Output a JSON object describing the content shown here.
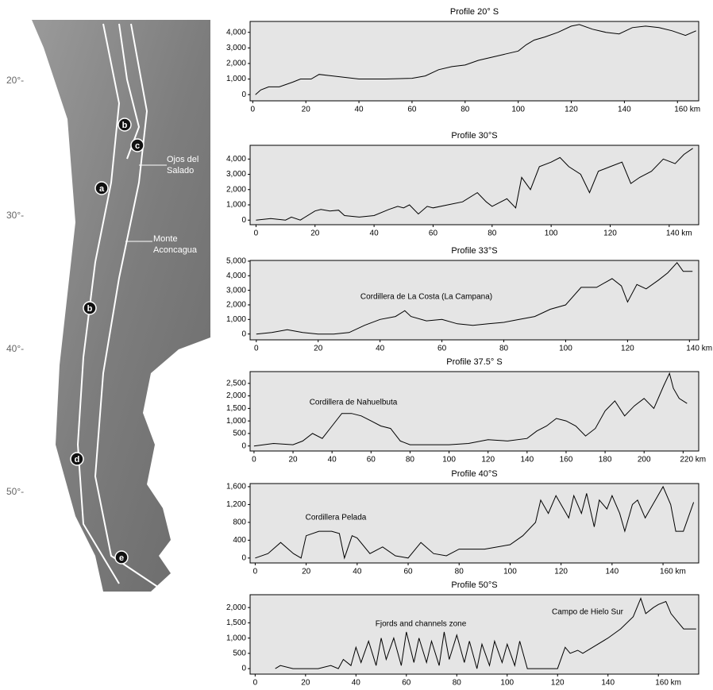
{
  "map": {
    "latitude_labels": [
      "20°-",
      "30°-",
      "40°-",
      "50°-"
    ],
    "markers": [
      "b",
      "c",
      "a",
      "b",
      "d",
      "e"
    ],
    "places": [
      [
        "Ojos del",
        "Salado"
      ],
      [
        "Monte",
        "Aconcagua"
      ]
    ]
  },
  "chart_data": [
    {
      "type": "line",
      "title": "Profile 20° S",
      "x": [
        1,
        3,
        6,
        10,
        15,
        18,
        22,
        25,
        30,
        40,
        50,
        60,
        65,
        70,
        75,
        80,
        85,
        90,
        95,
        100,
        103,
        106,
        110,
        115,
        120,
        123,
        128,
        133,
        138,
        143,
        148,
        153,
        158,
        163,
        167
      ],
      "series": [
        {
          "color": "#000000",
          "values": [
            0,
            300,
            500,
            500,
            800,
            1000,
            1000,
            1300,
            1200,
            1000,
            1000,
            1050,
            1200,
            1600,
            1800,
            1900,
            2200,
            2400,
            2600,
            2800,
            3200,
            3500,
            3700,
            4000,
            4400,
            4500,
            4200,
            4000,
            3900,
            4300,
            4400,
            4300,
            4100,
            3800,
            4100
          ]
        }
      ],
      "xlim": [
        -1,
        168
      ],
      "ylim": [
        -400,
        4700
      ],
      "xticks": [
        0,
        20,
        40,
        60,
        80,
        100,
        120,
        140,
        {
          "value": 160,
          "label": "160 km"
        }
      ],
      "yticks": [
        0,
        {
          "value": 1000,
          "label": "1,000"
        },
        {
          "value": 2000,
          "label": "2,000"
        },
        {
          "value": 3000,
          "label": "3,000"
        },
        {
          "value": 4000,
          "label": "4,000"
        }
      ],
      "annotations": []
    },
    {
      "type": "line",
      "title": "Profile 30°S",
      "x": [
        0,
        5,
        10,
        12,
        15,
        20,
        22,
        25,
        28,
        30,
        35,
        40,
        45,
        48,
        50,
        52,
        55,
        58,
        60,
        65,
        70,
        75,
        78,
        80,
        85,
        88,
        90,
        93,
        96,
        100,
        103,
        106,
        110,
        113,
        116,
        120,
        124,
        127,
        130,
        134,
        138,
        142,
        145,
        148
      ],
      "series": [
        {
          "color": "#000000",
          "values": [
            0,
            100,
            0,
            200,
            0,
            600,
            700,
            600,
            650,
            300,
            200,
            300,
            700,
            900,
            800,
            1000,
            400,
            900,
            800,
            1000,
            1200,
            1800,
            1200,
            900,
            1400,
            800,
            2800,
            2000,
            3500,
            3800,
            4100,
            3500,
            3000,
            1800,
            3200,
            3500,
            3800,
            2400,
            2800,
            3200,
            4000,
            3700,
            4300,
            4700
          ]
        }
      ],
      "xlim": [
        -2,
        150
      ],
      "ylim": [
        -300,
        4900
      ],
      "xticks": [
        0,
        20,
        40,
        60,
        80,
        100,
        120,
        {
          "value": 140,
          "label": "140 km"
        }
      ],
      "yticks": [
        0,
        {
          "value": 1000,
          "label": "1,000"
        },
        {
          "value": 2000,
          "label": "2,000"
        },
        {
          "value": 3000,
          "label": "3,000"
        },
        {
          "value": 4000,
          "label": "4,000"
        }
      ],
      "annotations": []
    },
    {
      "type": "line",
      "title": "Profile 33°S",
      "x": [
        0,
        5,
        10,
        15,
        20,
        25,
        30,
        35,
        40,
        45,
        48,
        50,
        55,
        60,
        65,
        70,
        75,
        80,
        85,
        90,
        95,
        100,
        105,
        110,
        115,
        118,
        120,
        123,
        126,
        130,
        133,
        136,
        138,
        141
      ],
      "series": [
        {
          "color": "#000000",
          "values": [
            0,
            100,
            300,
            100,
            0,
            0,
            100,
            600,
            1000,
            1200,
            1600,
            1200,
            900,
            1000,
            700,
            600,
            700,
            800,
            1000,
            1200,
            1700,
            2000,
            3200,
            3200,
            3800,
            3300,
            2200,
            3400,
            3100,
            3700,
            4200,
            4900,
            4300,
            4300
          ]
        }
      ],
      "xlim": [
        -2,
        143
      ],
      "ylim": [
        -400,
        5050
      ],
      "xticks": [
        0,
        20,
        40,
        60,
        80,
        100,
        120,
        {
          "value": 140,
          "label": "140 km"
        }
      ],
      "yticks": [
        0,
        {
          "value": 1000,
          "label": "1,000"
        },
        {
          "value": 2000,
          "label": "2,000"
        },
        {
          "value": 3000,
          "label": "3,000"
        },
        {
          "value": 4000,
          "label": "4,000"
        },
        {
          "value": 5000,
          "label": "5,000"
        }
      ],
      "annotations": [
        "Cordillera de La Costa (La Campana)"
      ]
    },
    {
      "type": "line",
      "title": "Profile 37.5° S",
      "x": [
        0,
        5,
        10,
        20,
        25,
        30,
        35,
        40,
        45,
        50,
        55,
        60,
        65,
        70,
        75,
        80,
        90,
        100,
        110,
        120,
        130,
        140,
        145,
        150,
        155,
        160,
        165,
        170,
        175,
        180,
        185,
        190,
        195,
        200,
        205,
        210,
        213,
        215,
        218,
        222
      ],
      "series": [
        {
          "color": "#000000",
          "values": [
            0,
            50,
            100,
            50,
            200,
            500,
            300,
            800,
            1300,
            1300,
            1200,
            1000,
            800,
            700,
            200,
            50,
            50,
            50,
            100,
            250,
            200,
            300,
            600,
            800,
            1100,
            1000,
            800,
            400,
            700,
            1400,
            1800,
            1200,
            1600,
            1900,
            1500,
            2400,
            2900,
            2300,
            1900,
            1700
          ]
        }
      ],
      "xlim": [
        -2,
        228
      ],
      "ylim": [
        -200,
        2970
      ],
      "xticks": [
        0,
        20,
        40,
        60,
        80,
        100,
        120,
        140,
        160,
        180,
        200,
        {
          "value": 220,
          "label": "220 km"
        }
      ],
      "yticks": [
        0,
        500,
        {
          "value": 1000,
          "label": "1,000"
        },
        {
          "value": 1500,
          "label": "1,500"
        },
        {
          "value": 2000,
          "label": "2,000"
        },
        {
          "value": 2500,
          "label": "2,500"
        }
      ],
      "annotations": [
        "Cordillera de Nahuelbuta"
      ]
    },
    {
      "type": "line",
      "title": "Profile 40°S",
      "x": [
        0,
        5,
        10,
        15,
        18,
        20,
        25,
        30,
        33,
        35,
        38,
        40,
        45,
        50,
        55,
        60,
        65,
        70,
        75,
        80,
        90,
        100,
        105,
        110,
        112,
        115,
        118,
        120,
        123,
        125,
        128,
        130,
        133,
        135,
        138,
        140,
        143,
        145,
        148,
        150,
        153,
        155,
        158,
        160,
        163,
        165,
        168,
        172
      ],
      "series": [
        {
          "color": "#000000",
          "values": [
            0,
            100,
            350,
            100,
            0,
            500,
            600,
            600,
            550,
            0,
            500,
            450,
            100,
            250,
            50,
            0,
            350,
            100,
            50,
            200,
            200,
            300,
            500,
            800,
            1300,
            1000,
            1400,
            1200,
            900,
            1400,
            1000,
            1450,
            700,
            1300,
            1100,
            1400,
            1000,
            600,
            1200,
            1300,
            900,
            1100,
            1400,
            1600,
            1200,
            600,
            600,
            1250
          ]
        }
      ],
      "xlim": [
        -2,
        174
      ],
      "ylim": [
        -110,
        1670
      ],
      "xticks": [
        0,
        20,
        40,
        60,
        80,
        100,
        120,
        140,
        {
          "value": 160,
          "label": "160 km"
        }
      ],
      "yticks": [
        0,
        400,
        800,
        {
          "value": 1200,
          "label": "1,200"
        },
        {
          "value": 1600,
          "label": "1,600"
        }
      ],
      "annotations": [
        "Cordillera Pelada"
      ]
    },
    {
      "type": "line",
      "title": "Profile 50°S",
      "x": [
        8,
        10,
        15,
        20,
        25,
        30,
        33,
        35,
        38,
        40,
        42,
        45,
        48,
        50,
        52,
        55,
        58,
        60,
        63,
        65,
        68,
        70,
        73,
        75,
        77,
        80,
        83,
        85,
        88,
        90,
        93,
        95,
        98,
        100,
        103,
        105,
        108,
        120,
        123,
        125,
        128,
        130,
        140,
        145,
        150,
        153,
        155,
        158,
        160,
        163,
        165,
        168,
        170,
        175
      ],
      "series": [
        {
          "color": "#000000",
          "values": [
            0,
            100,
            0,
            0,
            0,
            100,
            0,
            300,
            100,
            700,
            200,
            900,
            100,
            1000,
            300,
            1000,
            100,
            1200,
            200,
            1000,
            200,
            900,
            100,
            1200,
            300,
            1100,
            200,
            900,
            0,
            800,
            100,
            900,
            200,
            800,
            100,
            900,
            0,
            0,
            700,
            500,
            600,
            500,
            1000,
            1300,
            1700,
            2300,
            1800,
            2000,
            2100,
            2200,
            1800,
            1500,
            1300,
            1300
          ]
        }
      ],
      "xlim": [
        -2,
        176
      ],
      "ylim": [
        -180,
        2420
      ],
      "xticks": [
        0,
        20,
        40,
        60,
        80,
        100,
        120,
        140,
        {
          "value": 160,
          "label": "160 km"
        }
      ],
      "yticks": [
        0,
        500,
        {
          "value": 1000,
          "label": "1,000"
        },
        {
          "value": 1500,
          "label": "1,500"
        },
        {
          "value": 2000,
          "label": "2,000"
        }
      ],
      "annotations": [
        "Fjords and channels zone",
        "Campo de Hielo Sur"
      ]
    }
  ]
}
